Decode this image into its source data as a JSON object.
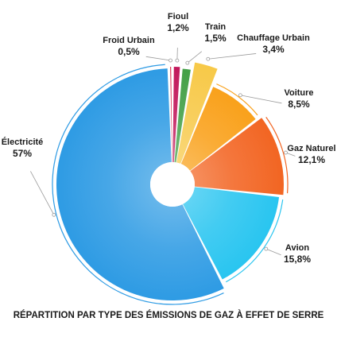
{
  "chart_data": {
    "type": "pie",
    "title": "RÉPARTITION PAR TYPE DES ÉMISSIONS DE GAZ À EFFET DE SERRE",
    "unit": "%",
    "slices": [
      {
        "name": "Fioul",
        "label": "1,2%",
        "value": 1.2,
        "color": "#c2185b"
      },
      {
        "name": "Train",
        "label": "1,5%",
        "value": 1.5,
        "color": "#43a047"
      },
      {
        "name": "Chauffage Urbain",
        "label": "3,4%",
        "value": 3.4,
        "color": "#f7c948"
      },
      {
        "name": "Voiture",
        "label": "8,5%",
        "value": 8.5,
        "color": "#f9a11b"
      },
      {
        "name": "Gaz Naturel",
        "label": "12,1%",
        "value": 12.1,
        "color": "#f26522"
      },
      {
        "name": "Avion",
        "label": "15,8%",
        "value": 15.8,
        "color": "#29c5f0"
      },
      {
        "name": "Électricité",
        "label": "57%",
        "value": 57.0,
        "color": "#2e9be4"
      },
      {
        "name": "Froid Urbain",
        "label": "0,5%",
        "value": 0.5,
        "color": "#d81b3c"
      }
    ]
  }
}
